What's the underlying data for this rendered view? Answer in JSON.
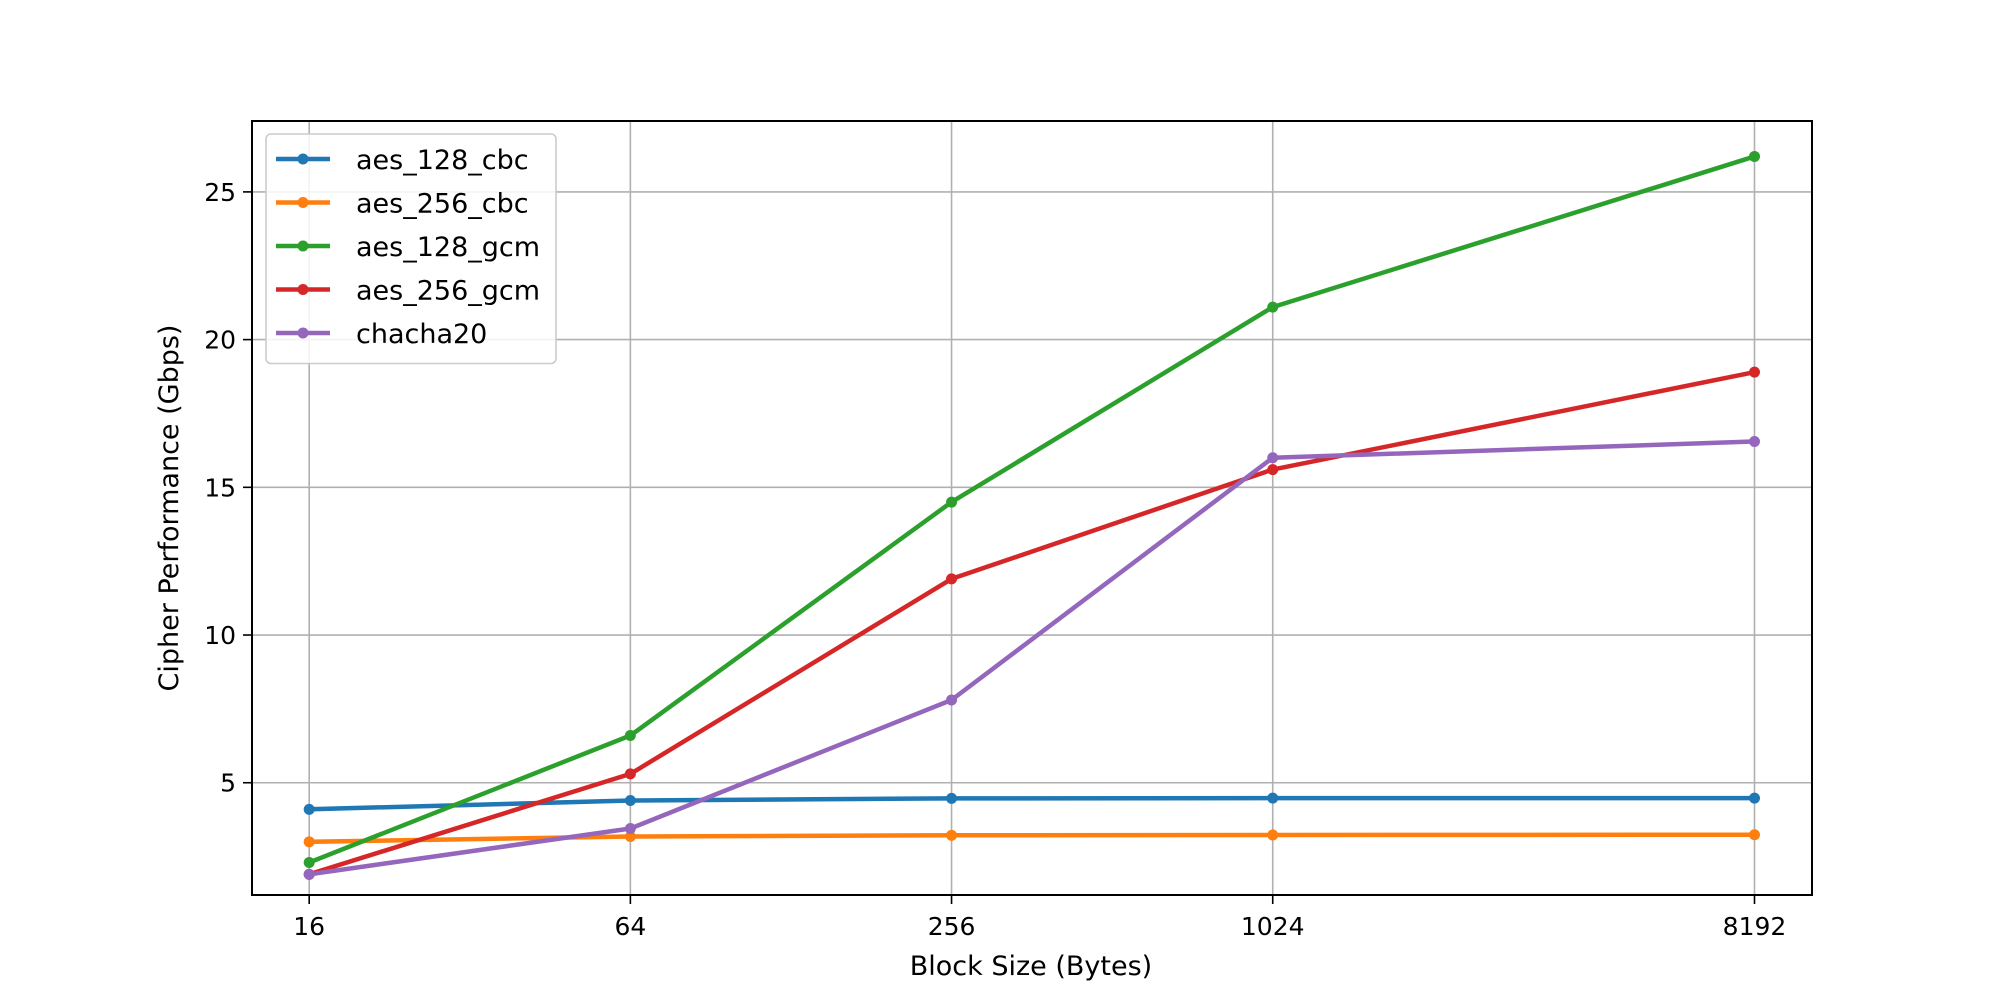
{
  "chart_data": {
    "type": "line",
    "title": "",
    "xlabel": "Block Size (Bytes)",
    "ylabel": "Cipher Performance (Gbps)",
    "x_scale": "log2",
    "categories": [
      "16",
      "64",
      "256",
      "1024",
      "8192"
    ],
    "x": [
      16,
      64,
      256,
      1024,
      8192
    ],
    "xlim": [
      12.5,
      10500
    ],
    "ylim": [
      1.2,
      27.4
    ],
    "yticks": [
      5,
      10,
      15,
      20,
      25
    ],
    "grid": true,
    "legend_position": "top-left",
    "series": [
      {
        "name": "aes_128_cbc",
        "color": "#1f77b4",
        "values": [
          4.1,
          4.4,
          4.47,
          4.48,
          4.48
        ]
      },
      {
        "name": "aes_256_cbc",
        "color": "#ff7f0e",
        "values": [
          3.0,
          3.18,
          3.22,
          3.23,
          3.24
        ]
      },
      {
        "name": "aes_128_gcm",
        "color": "#2ca02c",
        "values": [
          2.3,
          6.6,
          14.5,
          21.1,
          26.2
        ]
      },
      {
        "name": "aes_256_gcm",
        "color": "#d62728",
        "values": [
          1.9,
          5.3,
          11.9,
          15.6,
          18.9
        ]
      },
      {
        "name": "chacha20",
        "color": "#9467bd",
        "values": [
          1.9,
          3.45,
          7.8,
          16.0,
          16.55
        ]
      }
    ]
  }
}
